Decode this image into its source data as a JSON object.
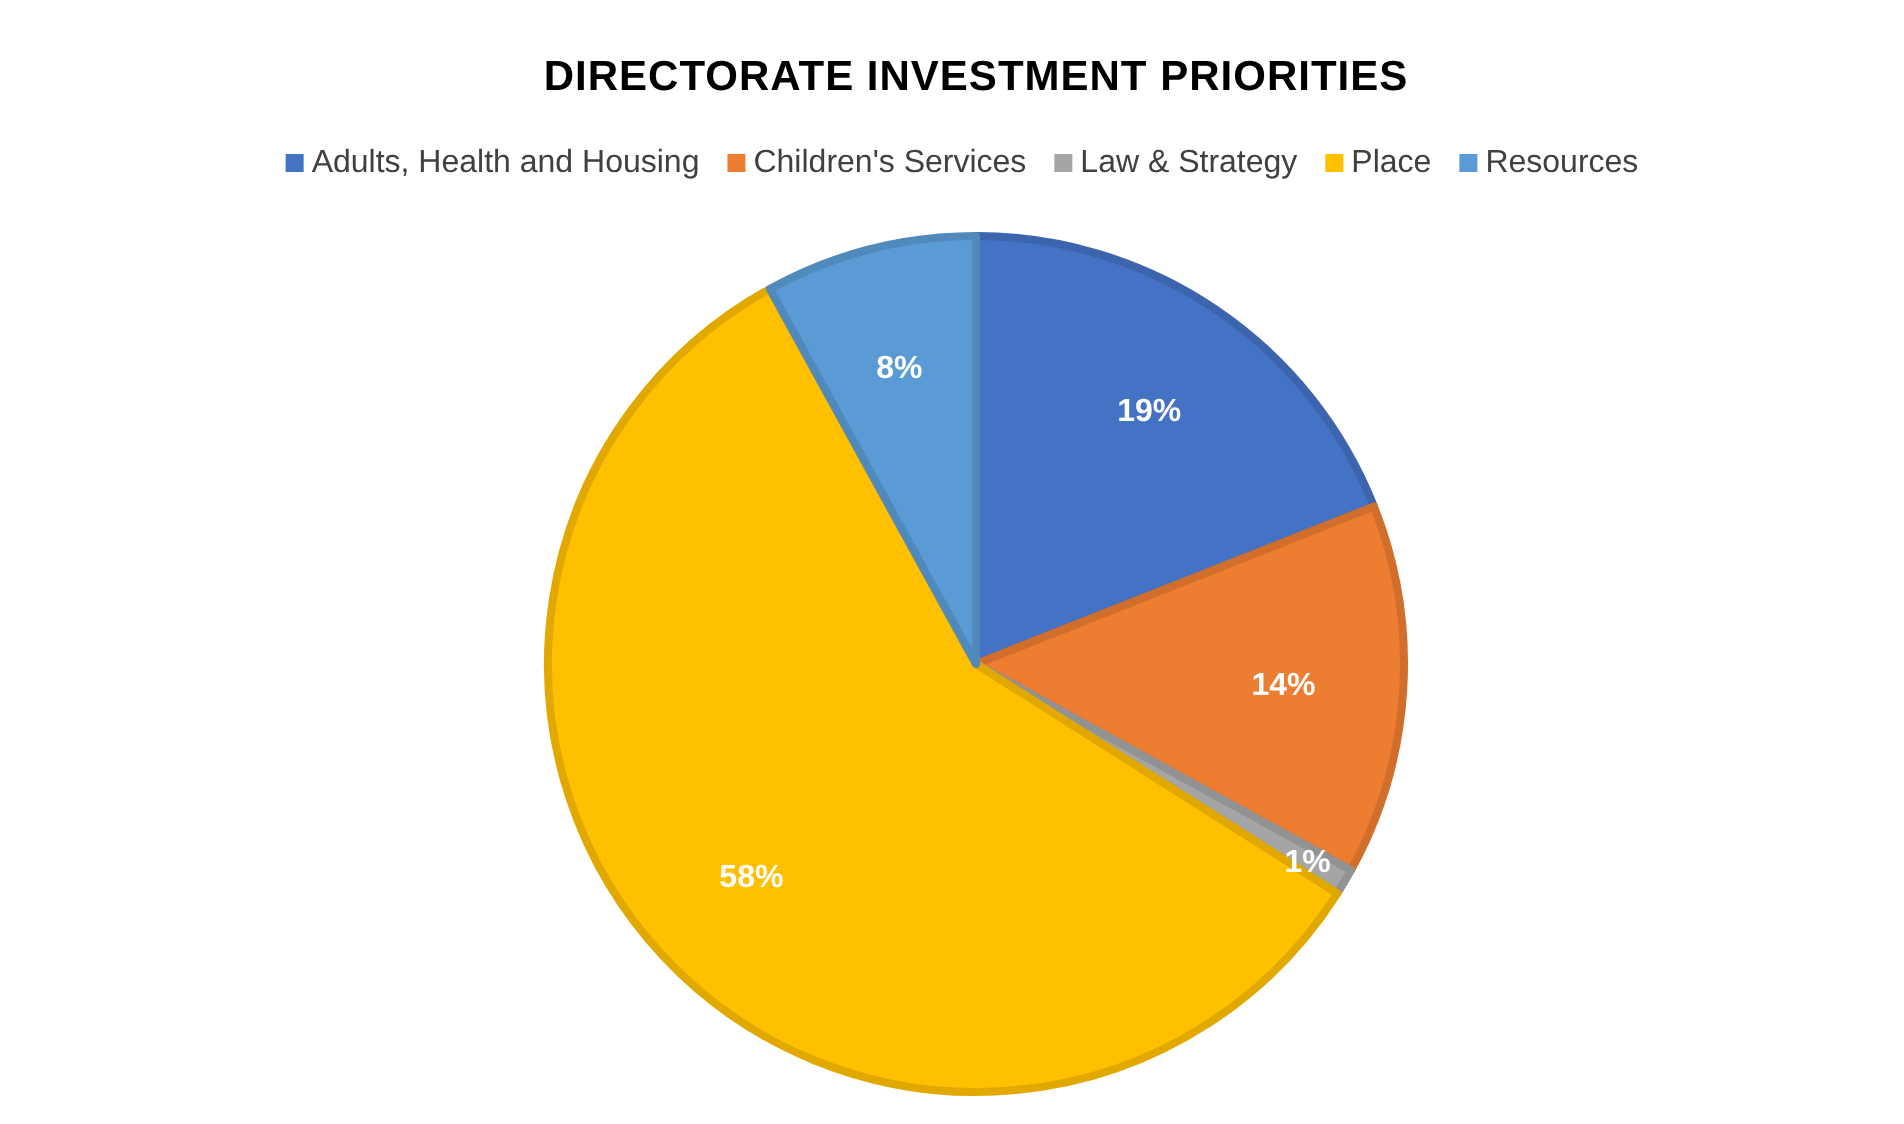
{
  "chart_data": {
    "type": "pie",
    "title": "DIRECTORATE INVESTMENT PRIORITIES",
    "categories": [
      "Adults, Health and Housing",
      "Children's Services",
      "Law & Strategy",
      "Place",
      "Resources"
    ],
    "values": [
      19,
      14,
      1,
      58,
      8
    ],
    "colors": [
      "#4472c4",
      "#ed7d31",
      "#a5a5a5",
      "#ffc000",
      "#5b9bd5"
    ],
    "value_labels": [
      "19%",
      "14%",
      "1%",
      "58%",
      "8%"
    ],
    "legend": "top"
  }
}
